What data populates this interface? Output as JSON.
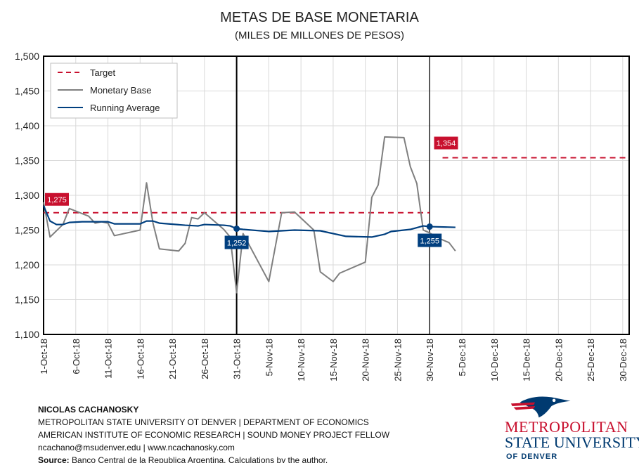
{
  "chart_data": {
    "type": "line",
    "title": "METAS DE BASE MONETARIA",
    "subtitle": "(MILES DE MILLONES DE PESOS)",
    "ylim": [
      1100,
      1500
    ],
    "yticks": [
      "1,100",
      "1,150",
      "1,200",
      "1,250",
      "1,300",
      "1,350",
      "1,400",
      "1,450",
      "1,500"
    ],
    "xlim": [
      "1-Oct-18",
      "31-Dec-18"
    ],
    "xticks": [
      "1-Oct-18",
      "6-Oct-18",
      "11-Oct-18",
      "16-Oct-18",
      "21-Oct-18",
      "26-Oct-18",
      "31-Oct-18",
      "5-Nov-18",
      "10-Nov-18",
      "15-Nov-18",
      "20-Nov-18",
      "25-Nov-18",
      "30-Nov-18",
      "5-Dec-18",
      "10-Dec-18",
      "15-Dec-18",
      "20-Dec-18",
      "25-Dec-18",
      "30-Dec-18"
    ],
    "grid": true,
    "legend_placement": "top-left",
    "vertical_markers": [
      "31-Oct-18",
      "30-Nov-18"
    ],
    "series": [
      {
        "name": "Target",
        "color": "#c8102e",
        "style": "dashed",
        "segments": [
          {
            "x": [
              "1-Oct-18",
              "30-Nov-18"
            ],
            "y": [
              1275,
              1275
            ],
            "label": "1,275"
          },
          {
            "x": [
              "2-Dec-18",
              "31-Dec-18"
            ],
            "y": [
              1354,
              1354
            ],
            "label": "1,354"
          }
        ]
      },
      {
        "name": "Monetary Base",
        "color": "#7f7f7f",
        "points": [
          [
            "1-Oct-18",
            1290
          ],
          [
            "2-Oct-18",
            1240
          ],
          [
            "4-Oct-18",
            1258
          ],
          [
            "5-Oct-18",
            1281
          ],
          [
            "8-Oct-18",
            1270
          ],
          [
            "9-Oct-18",
            1260
          ],
          [
            "10-Oct-18",
            1262
          ],
          [
            "11-Oct-18",
            1260
          ],
          [
            "12-Oct-18",
            1242
          ],
          [
            "16-Oct-18",
            1250
          ],
          [
            "17-Oct-18",
            1318
          ],
          [
            "18-Oct-18",
            1260
          ],
          [
            "19-Oct-18",
            1223
          ],
          [
            "22-Oct-18",
            1220
          ],
          [
            "23-Oct-18",
            1231
          ],
          [
            "24-Oct-18",
            1268
          ],
          [
            "25-Oct-18",
            1266
          ],
          [
            "26-Oct-18",
            1275
          ],
          [
            "29-Oct-18",
            1251
          ],
          [
            "30-Oct-18",
            1240
          ],
          [
            "31-Oct-18",
            1160
          ],
          [
            "1-Nov-18",
            1245
          ],
          [
            "5-Nov-18",
            1176
          ],
          [
            "7-Nov-18",
            1275
          ],
          [
            "9-Nov-18",
            1276
          ],
          [
            "12-Nov-18",
            1250
          ],
          [
            "13-Nov-18",
            1190
          ],
          [
            "15-Nov-18",
            1176
          ],
          [
            "16-Nov-18",
            1188
          ],
          [
            "20-Nov-18",
            1204
          ],
          [
            "21-Nov-18",
            1297
          ],
          [
            "22-Nov-18",
            1315
          ],
          [
            "23-Nov-18",
            1384
          ],
          [
            "26-Nov-18",
            1383
          ],
          [
            "27-Nov-18",
            1341
          ],
          [
            "28-Nov-18",
            1317
          ],
          [
            "29-Nov-18",
            1250
          ],
          [
            "30-Nov-18",
            1246
          ],
          [
            "1-Dec-18",
            1240
          ],
          [
            "3-Dec-18",
            1232
          ],
          [
            "4-Dec-18",
            1220
          ]
        ]
      },
      {
        "name": "Running Average",
        "color": "#003f7f",
        "points": [
          [
            "1-Oct-18",
            1285
          ],
          [
            "2-Oct-18",
            1263
          ],
          [
            "3-Oct-18",
            1258
          ],
          [
            "4-Oct-18",
            1258
          ],
          [
            "5-Oct-18",
            1261
          ],
          [
            "7-Oct-18",
            1262
          ],
          [
            "11-Oct-18",
            1262
          ],
          [
            "12-Oct-18",
            1259
          ],
          [
            "16-Oct-18",
            1259
          ],
          [
            "17-Oct-18",
            1263
          ],
          [
            "18-Oct-18",
            1263
          ],
          [
            "19-Oct-18",
            1260
          ],
          [
            "23-Oct-18",
            1257
          ],
          [
            "25-Oct-18",
            1256
          ],
          [
            "26-Oct-18",
            1258
          ],
          [
            "29-Oct-18",
            1257
          ],
          [
            "30-Oct-18",
            1256
          ],
          [
            "31-Oct-18",
            1252
          ],
          [
            "1-Nov-18",
            1251
          ],
          [
            "5-Nov-18",
            1248
          ],
          [
            "9-Nov-18",
            1250
          ],
          [
            "13-Nov-18",
            1249
          ],
          [
            "17-Nov-18",
            1241
          ],
          [
            "21-Nov-18",
            1240
          ],
          [
            "23-Nov-18",
            1244
          ],
          [
            "24-Nov-18",
            1248
          ],
          [
            "27-Nov-18",
            1251
          ],
          [
            "29-Nov-18",
            1256
          ],
          [
            "30-Nov-18",
            1255
          ],
          [
            "4-Dec-18",
            1254
          ]
        ]
      }
    ],
    "annotations": [
      {
        "x": "31-Oct-18",
        "y": 1252,
        "label": "1,252"
      },
      {
        "x": "30-Nov-18",
        "y": 1255,
        "label": "1,255"
      }
    ]
  },
  "footer": {
    "author": "NICOLAS CACHANOSKY",
    "line1": "METROPOLITAN STATE UNIVERSITY OT DENVER | DEPARTMENT OF ECONOMICS",
    "line2": "AMERICAN INSTITUTE OF ECONOMIC RESEARCH | SOUND MONEY PROJECT FELLOW",
    "line3": "ncachano@msudenver.edu  | www.ncachanosky.com",
    "source_label": "Source:",
    "source": " Banco Central de la Republica Argentina. Calculations by the author."
  },
  "logo": {
    "line1": "METROPOLITAN",
    "line2": "STATE UNIVERSITY",
    "line3": "OF DENVER"
  }
}
